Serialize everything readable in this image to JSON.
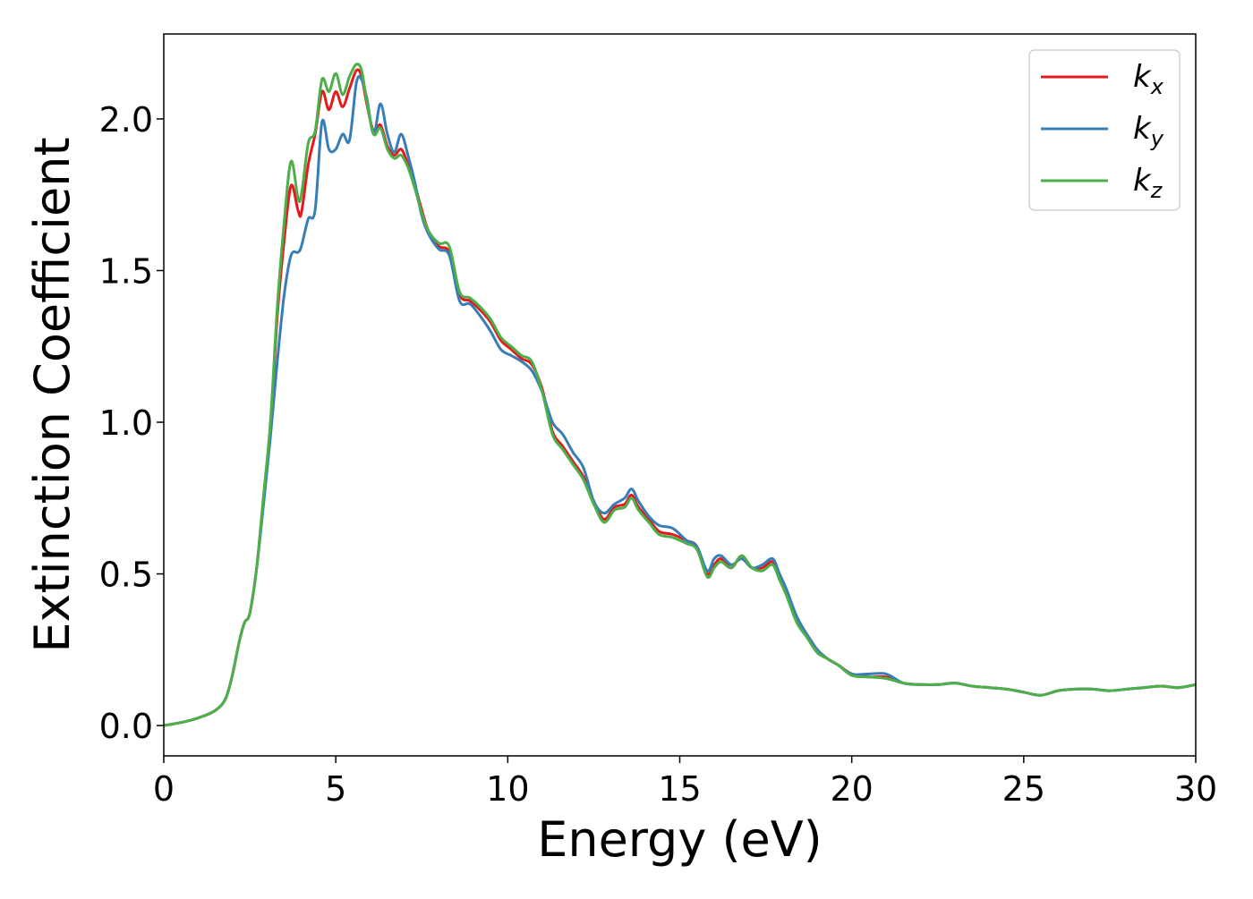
{
  "chart_data": {
    "type": "line",
    "xlabel": "Energy (eV)",
    "ylabel": "Extinction Coefficient",
    "xlim": [
      0,
      30
    ],
    "ylim": [
      -0.1,
      2.28
    ],
    "xticks": [
      0,
      5,
      10,
      15,
      20,
      25,
      30
    ],
    "xtick_labels": [
      "0",
      "5",
      "10",
      "15",
      "20",
      "25",
      "30"
    ],
    "yticks": [
      0.0,
      0.5,
      1.0,
      1.5,
      2.0
    ],
    "ytick_labels": [
      "0.0",
      "0.5",
      "1.0",
      "1.5",
      "2.0"
    ],
    "grid": false,
    "legend": "top-right",
    "series": [
      {
        "name": "k",
        "subscript": "x",
        "color": "#e41a1c",
        "x": [
          0,
          0.5,
          1.0,
          1.5,
          1.8,
          2.0,
          2.2,
          2.35,
          2.5,
          2.7,
          2.9,
          3.1,
          3.3,
          3.5,
          3.7,
          3.9,
          4.0,
          4.2,
          4.4,
          4.6,
          4.8,
          5.0,
          5.2,
          5.4,
          5.6,
          5.75,
          5.9,
          6.1,
          6.3,
          6.5,
          6.7,
          6.9,
          7.1,
          7.3,
          7.5,
          7.7,
          8.0,
          8.3,
          8.6,
          8.9,
          9.2,
          9.5,
          9.8,
          10.1,
          10.4,
          10.7,
          11.0,
          11.3,
          11.6,
          11.9,
          12.2,
          12.5,
          12.8,
          13.1,
          13.4,
          13.6,
          13.8,
          14.1,
          14.4,
          14.8,
          15.2,
          15.5,
          15.8,
          16.0,
          16.2,
          16.5,
          16.8,
          17.1,
          17.4,
          17.7,
          17.9,
          18.1,
          18.4,
          18.7,
          19.0,
          19.3,
          19.6,
          20.0,
          20.5,
          21.0,
          21.5,
          22.0,
          22.5,
          23.0,
          23.5,
          24.0,
          24.5,
          25.0,
          25.5,
          26.0,
          26.5,
          27.0,
          27.5,
          28.0,
          28.5,
          29.0,
          29.5,
          30.0
        ],
        "y": [
          0.0,
          0.01,
          0.025,
          0.05,
          0.09,
          0.17,
          0.28,
          0.34,
          0.37,
          0.52,
          0.75,
          0.98,
          1.35,
          1.6,
          1.78,
          1.7,
          1.69,
          1.85,
          1.95,
          2.09,
          2.03,
          2.09,
          2.04,
          2.1,
          2.16,
          2.14,
          2.05,
          1.96,
          1.98,
          1.91,
          1.88,
          1.9,
          1.85,
          1.78,
          1.7,
          1.63,
          1.58,
          1.56,
          1.42,
          1.4,
          1.37,
          1.33,
          1.27,
          1.24,
          1.21,
          1.19,
          1.11,
          0.97,
          0.92,
          0.87,
          0.82,
          0.74,
          0.68,
          0.72,
          0.73,
          0.76,
          0.72,
          0.68,
          0.64,
          0.63,
          0.61,
          0.59,
          0.5,
          0.53,
          0.55,
          0.52,
          0.56,
          0.52,
          0.52,
          0.54,
          0.49,
          0.44,
          0.35,
          0.3,
          0.25,
          0.22,
          0.2,
          0.17,
          0.16,
          0.16,
          0.14,
          0.135,
          0.135,
          0.14,
          0.13,
          0.125,
          0.12,
          0.11,
          0.1,
          0.115,
          0.12,
          0.12,
          0.115,
          0.12,
          0.125,
          0.13,
          0.125,
          0.135
        ]
      },
      {
        "name": "k",
        "subscript": "y",
        "color": "#377eb8",
        "x": [
          0,
          0.5,
          1.0,
          1.5,
          1.8,
          2.0,
          2.2,
          2.35,
          2.5,
          2.7,
          2.9,
          3.1,
          3.3,
          3.5,
          3.7,
          3.9,
          4.0,
          4.2,
          4.4,
          4.6,
          4.8,
          5.0,
          5.2,
          5.4,
          5.6,
          5.75,
          5.9,
          6.1,
          6.3,
          6.5,
          6.7,
          6.9,
          7.1,
          7.3,
          7.5,
          7.7,
          8.0,
          8.3,
          8.6,
          8.9,
          9.2,
          9.5,
          9.8,
          10.1,
          10.4,
          10.7,
          11.0,
          11.3,
          11.6,
          11.9,
          12.2,
          12.5,
          12.8,
          13.1,
          13.4,
          13.6,
          13.8,
          14.1,
          14.4,
          14.8,
          15.2,
          15.5,
          15.8,
          16.0,
          16.2,
          16.5,
          16.8,
          17.1,
          17.4,
          17.7,
          17.9,
          18.1,
          18.4,
          18.7,
          19.0,
          19.3,
          19.6,
          20.0,
          20.5,
          21.0,
          21.5,
          22.0,
          22.5,
          23.0,
          23.5,
          24.0,
          24.5,
          25.0,
          25.5,
          26.0,
          26.5,
          27.0,
          27.5,
          28.0,
          28.5,
          29.0,
          29.5,
          30.0
        ],
        "y": [
          0.0,
          0.01,
          0.025,
          0.05,
          0.09,
          0.17,
          0.28,
          0.34,
          0.37,
          0.52,
          0.73,
          0.95,
          1.2,
          1.42,
          1.55,
          1.56,
          1.58,
          1.67,
          1.7,
          1.99,
          1.9,
          1.9,
          1.95,
          1.93,
          2.12,
          2.13,
          2.07,
          1.95,
          2.05,
          1.95,
          1.89,
          1.95,
          1.88,
          1.79,
          1.68,
          1.62,
          1.57,
          1.55,
          1.4,
          1.39,
          1.35,
          1.3,
          1.24,
          1.22,
          1.2,
          1.17,
          1.1,
          1.0,
          0.96,
          0.9,
          0.85,
          0.74,
          0.7,
          0.73,
          0.75,
          0.78,
          0.74,
          0.69,
          0.66,
          0.65,
          0.61,
          0.59,
          0.51,
          0.55,
          0.56,
          0.53,
          0.55,
          0.52,
          0.53,
          0.55,
          0.5,
          0.45,
          0.36,
          0.3,
          0.25,
          0.22,
          0.2,
          0.17,
          0.17,
          0.17,
          0.14,
          0.135,
          0.135,
          0.14,
          0.13,
          0.125,
          0.12,
          0.11,
          0.1,
          0.115,
          0.12,
          0.12,
          0.115,
          0.12,
          0.125,
          0.13,
          0.125,
          0.135
        ]
      },
      {
        "name": "k",
        "subscript": "z",
        "color": "#4daf4a",
        "x": [
          0,
          0.5,
          1.0,
          1.5,
          1.8,
          2.0,
          2.2,
          2.35,
          2.5,
          2.7,
          2.9,
          3.1,
          3.3,
          3.5,
          3.7,
          3.9,
          4.0,
          4.2,
          4.4,
          4.6,
          4.8,
          5.0,
          5.2,
          5.4,
          5.6,
          5.75,
          5.9,
          6.1,
          6.3,
          6.5,
          6.7,
          6.9,
          7.1,
          7.3,
          7.5,
          7.7,
          8.0,
          8.3,
          8.6,
          8.9,
          9.2,
          9.5,
          9.8,
          10.1,
          10.4,
          10.7,
          11.0,
          11.3,
          11.6,
          11.9,
          12.2,
          12.5,
          12.8,
          13.1,
          13.4,
          13.6,
          13.8,
          14.1,
          14.4,
          14.8,
          15.2,
          15.5,
          15.8,
          16.0,
          16.2,
          16.5,
          16.8,
          17.1,
          17.4,
          17.7,
          17.9,
          18.1,
          18.4,
          18.7,
          19.0,
          19.3,
          19.6,
          20.0,
          20.5,
          21.0,
          21.5,
          22.0,
          22.5,
          23.0,
          23.5,
          24.0,
          24.5,
          25.0,
          25.5,
          26.0,
          26.5,
          27.0,
          27.5,
          28.0,
          28.5,
          29.0,
          29.5,
          30.0
        ],
        "y": [
          0.0,
          0.01,
          0.025,
          0.05,
          0.09,
          0.17,
          0.28,
          0.34,
          0.37,
          0.52,
          0.76,
          1.0,
          1.38,
          1.66,
          1.86,
          1.74,
          1.75,
          1.92,
          1.96,
          2.13,
          2.09,
          2.15,
          2.08,
          2.14,
          2.18,
          2.16,
          2.06,
          1.95,
          1.97,
          1.9,
          1.87,
          1.88,
          1.84,
          1.77,
          1.69,
          1.63,
          1.59,
          1.58,
          1.43,
          1.41,
          1.38,
          1.34,
          1.28,
          1.25,
          1.22,
          1.2,
          1.1,
          0.96,
          0.91,
          0.86,
          0.81,
          0.73,
          0.67,
          0.71,
          0.72,
          0.75,
          0.71,
          0.67,
          0.63,
          0.62,
          0.6,
          0.58,
          0.49,
          0.52,
          0.54,
          0.52,
          0.56,
          0.52,
          0.51,
          0.53,
          0.48,
          0.43,
          0.34,
          0.29,
          0.24,
          0.22,
          0.2,
          0.165,
          0.16,
          0.155,
          0.14,
          0.135,
          0.135,
          0.14,
          0.13,
          0.125,
          0.12,
          0.11,
          0.1,
          0.115,
          0.12,
          0.12,
          0.115,
          0.12,
          0.125,
          0.13,
          0.125,
          0.135
        ]
      }
    ]
  }
}
